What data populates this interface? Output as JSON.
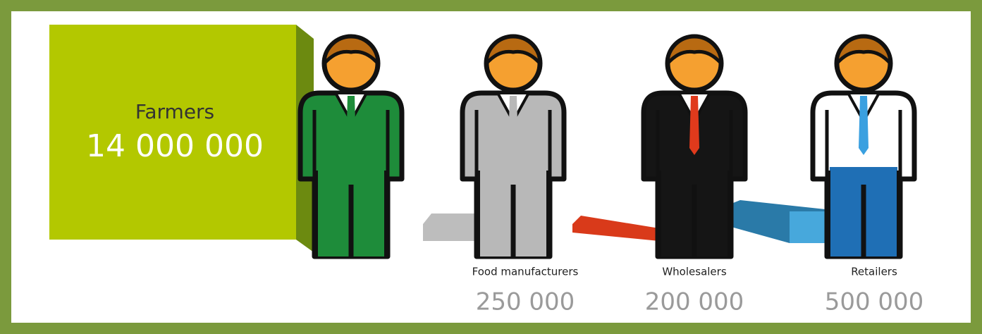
{
  "groups": [
    {
      "label": "Farmers",
      "value": "14 000 000"
    },
    {
      "label": "Food manufacturers",
      "value": "250 000"
    },
    {
      "label": "Wholesalers",
      "value": "200 000"
    },
    {
      "label": "Retailers",
      "value": "500 000"
    }
  ]
}
